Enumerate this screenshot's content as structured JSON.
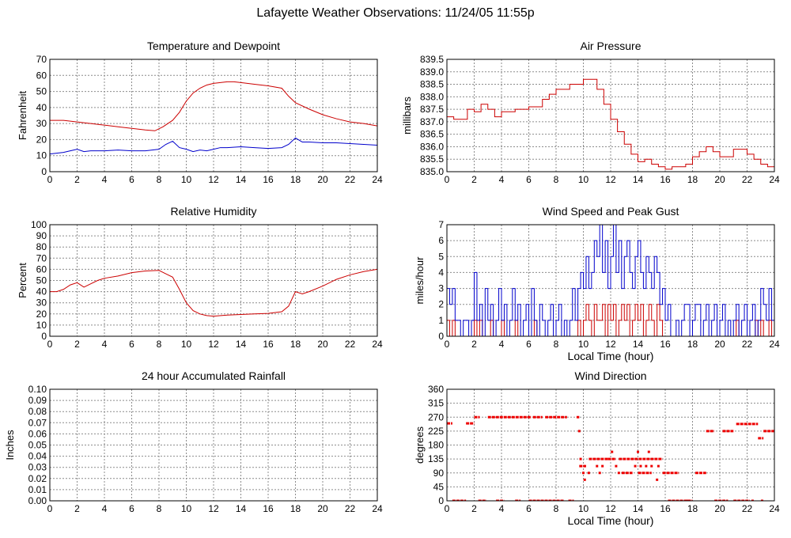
{
  "title": "Lafayette Weather Observations: 11/24/05 11:55p",
  "colors": {
    "temperature": "#cc0000",
    "dewpoint": "#0000cc",
    "pressure": "#cc0000",
    "humidity": "#cc0000",
    "wind_speed": "#cc0000",
    "peak_gust": "#0000cc",
    "rainfall": "#cc0000",
    "direction": "#ee0000"
  },
  "chart_data": [
    {
      "id": "temperature-dewpoint",
      "type": "line",
      "title": "Temperature and Dewpoint",
      "xlabel": "",
      "ylabel": "Fahrenheit",
      "xlim": [
        0,
        24
      ],
      "ylim": [
        0,
        70
      ],
      "xticks": [
        0,
        2,
        4,
        6,
        8,
        10,
        12,
        14,
        16,
        18,
        20,
        22,
        24
      ],
      "yticks": [
        0,
        10,
        20,
        30,
        40,
        50,
        60,
        70
      ],
      "grid": true,
      "series": [
        {
          "x": [
            0,
            1,
            2,
            3,
            4,
            5,
            6,
            7,
            7.7,
            8.3,
            9,
            9.5,
            10,
            10.5,
            11,
            11.5,
            12,
            12.5,
            13,
            13.5,
            14,
            15,
            16,
            17,
            17.5,
            18,
            19,
            20,
            21,
            22,
            23,
            24
          ],
          "y": [
            32,
            32,
            31,
            30,
            29,
            28,
            27,
            26,
            25.5,
            28,
            32,
            37,
            44,
            49,
            52,
            54,
            55,
            55.5,
            56,
            56,
            55.5,
            54.5,
            53.5,
            52,
            47,
            43,
            39,
            35.5,
            33,
            31,
            30,
            28.5
          ]
        },
        {
          "x": [
            0,
            0.5,
            1,
            1.5,
            2,
            2.5,
            3,
            4,
            5,
            6,
            7,
            8,
            8.5,
            9,
            9.5,
            10,
            10.5,
            11,
            11.5,
            12,
            12.5,
            13,
            14,
            15,
            16,
            17,
            17.5,
            18,
            18.5,
            19,
            20,
            21,
            22,
            23,
            24
          ],
          "y": [
            11,
            11.5,
            12,
            13,
            14,
            12.5,
            13,
            13,
            13.5,
            13,
            13,
            14,
            17,
            19,
            15,
            14,
            12.5,
            13.5,
            13,
            14,
            15,
            15,
            15.5,
            15,
            14.5,
            15,
            17,
            21,
            18.5,
            18.5,
            18,
            18,
            17.5,
            17,
            16.5
          ]
        }
      ]
    },
    {
      "id": "air-pressure",
      "type": "line",
      "title": "Air Pressure",
      "xlabel": "",
      "ylabel": "millibars",
      "xlim": [
        0,
        24
      ],
      "ylim": [
        835.0,
        839.5
      ],
      "xticks": [
        0,
        2,
        4,
        6,
        8,
        10,
        12,
        14,
        16,
        18,
        20,
        22,
        24
      ],
      "yticks": [
        835.0,
        835.5,
        836.0,
        836.5,
        837.0,
        837.5,
        838.0,
        838.5,
        839.0,
        839.5
      ],
      "ytick_labels": [
        "835.0",
        "835.5",
        "836.0",
        "836.5",
        "837.0",
        "837.5",
        "838.0",
        "838.5",
        "839.0",
        "839.5"
      ],
      "grid": true,
      "series": [
        {
          "step": true,
          "x": [
            0,
            0.5,
            1.5,
            2,
            2.5,
            3,
            3.5,
            4,
            5,
            6,
            7,
            7.5,
            8,
            9,
            10,
            11,
            11.5,
            12,
            12.5,
            13,
            13.5,
            14,
            14.5,
            15,
            15.5,
            16,
            16.5,
            17,
            17.5,
            18,
            18.5,
            19,
            19.5,
            20,
            21,
            22,
            22.5,
            23,
            23.5,
            24
          ],
          "y": [
            837.2,
            837.1,
            837.5,
            837.4,
            837.7,
            837.5,
            837.2,
            837.4,
            837.5,
            837.6,
            837.9,
            838.1,
            838.3,
            838.5,
            838.7,
            838.3,
            837.7,
            837.1,
            836.6,
            836.1,
            835.7,
            835.4,
            835.5,
            835.3,
            835.2,
            835.1,
            835.2,
            835.2,
            835.3,
            835.6,
            835.8,
            836.0,
            835.8,
            835.6,
            835.9,
            835.7,
            835.5,
            835.3,
            835.2,
            835.1
          ]
        }
      ]
    },
    {
      "id": "relative-humidity",
      "type": "line",
      "title": "Relative Humidity",
      "xlabel": "",
      "ylabel": "Percent",
      "xlim": [
        0,
        24
      ],
      "ylim": [
        0,
        100
      ],
      "xticks": [
        0,
        2,
        4,
        6,
        8,
        10,
        12,
        14,
        16,
        18,
        20,
        22,
        24
      ],
      "yticks": [
        0,
        10,
        20,
        30,
        40,
        50,
        60,
        70,
        80,
        90,
        100
      ],
      "grid": true,
      "series": [
        {
          "x": [
            0,
            0.5,
            1,
            1.5,
            2,
            2.5,
            3,
            3.5,
            4,
            5,
            6,
            7,
            8,
            8.5,
            9,
            9.5,
            10,
            10.5,
            11,
            11.5,
            12,
            13,
            14,
            15,
            16,
            17,
            17.5,
            18,
            18.5,
            19,
            20,
            21,
            22,
            23,
            24
          ],
          "y": [
            40,
            40,
            42,
            46,
            48,
            44,
            47,
            50,
            52,
            54,
            57,
            58.5,
            59,
            56,
            53,
            42,
            30,
            23,
            20,
            18.5,
            18,
            19,
            19.5,
            20,
            20.5,
            22,
            27,
            40,
            38,
            40,
            45,
            51,
            55,
            58,
            60
          ]
        }
      ]
    },
    {
      "id": "wind-speed",
      "type": "line",
      "title": "Wind Speed and Peak Gust",
      "xlabel": "Local Time (hour)",
      "ylabel": "miles/hour",
      "xlim": [
        0,
        24
      ],
      "ylim": [
        0,
        7
      ],
      "xticks": [
        0,
        2,
        4,
        6,
        8,
        10,
        12,
        14,
        16,
        18,
        20,
        22,
        24
      ],
      "yticks": [
        0,
        1,
        2,
        3,
        4,
        5,
        6,
        7
      ],
      "grid": true,
      "series": [
        {
          "role": "wind_speed",
          "step": true,
          "x": [
            0,
            0.2,
            0.4,
            0.6,
            2.0,
            2.2,
            2.4,
            2.6,
            3.2,
            3.4,
            4.0,
            4.2,
            5.0,
            5.2,
            6.4,
            6.6,
            9.6,
            9.8,
            10.0,
            10.2,
            10.4,
            10.6,
            10.8,
            11.0,
            11.2,
            11.4,
            11.6,
            11.8,
            12.0,
            12.2,
            12.4,
            12.6,
            12.8,
            13.0,
            13.2,
            13.4,
            13.6,
            13.8,
            14.0,
            14.2,
            14.4,
            14.6,
            14.8,
            15.0,
            15.2,
            15.4,
            15.6,
            15.8,
            16.0,
            21.2,
            21.4,
            22.6,
            22.8,
            23.0,
            23.2,
            23.6,
            23.8,
            24.0
          ],
          "y": [
            1,
            0,
            1,
            0,
            1,
            0,
            1,
            0,
            1,
            0,
            1,
            0,
            1,
            0,
            1,
            0,
            1,
            0,
            1,
            2,
            1,
            0,
            2,
            1,
            1,
            2,
            0,
            2,
            1,
            2,
            0,
            1,
            2,
            1,
            2,
            0,
            1,
            2,
            1,
            2,
            0,
            1,
            2,
            1,
            0,
            2,
            1,
            0,
            0,
            1,
            0,
            1,
            0,
            1,
            0,
            1,
            0,
            0
          ]
        },
        {
          "role": "peak_gust",
          "step": true,
          "x": [
            0,
            0.2,
            0.4,
            0.6,
            1.0,
            1.2,
            1.6,
            1.8,
            2.0,
            2.2,
            2.4,
            2.6,
            2.8,
            3.0,
            3.2,
            3.4,
            3.6,
            3.8,
            4.0,
            4.2,
            4.4,
            4.6,
            4.8,
            5.0,
            5.2,
            5.4,
            5.6,
            5.8,
            6.0,
            6.2,
            6.4,
            6.6,
            6.8,
            7.0,
            7.2,
            7.4,
            7.6,
            7.8,
            8.0,
            8.2,
            8.4,
            8.6,
            8.8,
            9.0,
            9.2,
            9.4,
            9.6,
            9.8,
            10.0,
            10.2,
            10.4,
            10.6,
            10.8,
            11.0,
            11.2,
            11.4,
            11.6,
            11.8,
            12.0,
            12.2,
            12.4,
            12.6,
            12.8,
            13.0,
            13.2,
            13.4,
            13.6,
            13.8,
            14.0,
            14.2,
            14.4,
            14.6,
            14.8,
            15.0,
            15.2,
            15.4,
            15.6,
            15.8,
            16.0,
            16.2,
            16.4,
            16.8,
            17.0,
            17.2,
            17.4,
            17.8,
            18.0,
            18.2,
            18.6,
            18.8,
            19.0,
            19.2,
            19.4,
            19.6,
            19.8,
            20.0,
            20.2,
            20.4,
            20.6,
            20.8,
            21.0,
            21.2,
            21.4,
            21.6,
            21.8,
            22.0,
            22.2,
            22.4,
            22.6,
            22.8,
            23.0,
            23.2,
            23.4,
            23.6,
            23.8,
            24.0
          ],
          "y": [
            3,
            2,
            3,
            1,
            0,
            1,
            0,
            1,
            4,
            1,
            2,
            0,
            3,
            1,
            2,
            0,
            1,
            3,
            1,
            2,
            0,
            1,
            3,
            1,
            2,
            0,
            1,
            2,
            0,
            3,
            1,
            0,
            2,
            1,
            0,
            1,
            2,
            0,
            1,
            2,
            0,
            1,
            0,
            1,
            3,
            1,
            3,
            4,
            3,
            5,
            3,
            4,
            6,
            5,
            7,
            4,
            6,
            3,
            5,
            7,
            4,
            6,
            3,
            5,
            6,
            4,
            3,
            5,
            6,
            4,
            3,
            5,
            4,
            3,
            5,
            4,
            2,
            3,
            1,
            2,
            0,
            1,
            0,
            1,
            2,
            0,
            1,
            2,
            0,
            1,
            2,
            0,
            1,
            2,
            0,
            1,
            2,
            0,
            1,
            0,
            1,
            2,
            0,
            1,
            2,
            0,
            1,
            2,
            0,
            1,
            3,
            2,
            1,
            3,
            1,
            0
          ]
        }
      ]
    },
    {
      "id": "rainfall",
      "type": "line",
      "title": "24 hour Accumulated Rainfall",
      "xlabel": "",
      "ylabel": "Inches",
      "xlim": [
        0,
        24
      ],
      "ylim": [
        0,
        0.1
      ],
      "xticks": [
        0,
        2,
        4,
        6,
        8,
        10,
        12,
        14,
        16,
        18,
        20,
        22,
        24
      ],
      "yticks": [
        0,
        0.01,
        0.02,
        0.03,
        0.04,
        0.05,
        0.06,
        0.07,
        0.08,
        0.09,
        0.1
      ],
      "ytick_labels": [
        "0.00",
        "0.01",
        "0.02",
        "0.03",
        "0.04",
        "0.05",
        "0.06",
        "0.07",
        "0.08",
        "0.09",
        "0.10"
      ],
      "grid": true,
      "series": [
        {
          "x": [
            0,
            24
          ],
          "y": [
            0,
            0
          ]
        }
      ]
    },
    {
      "id": "wind-direction",
      "type": "scatter",
      "title": "Wind Direction",
      "xlabel": "Local Time (hour)",
      "ylabel": "degrees",
      "xlim": [
        0,
        24
      ],
      "ylim": [
        0,
        360
      ],
      "xticks": [
        0,
        2,
        4,
        6,
        8,
        10,
        12,
        14,
        16,
        18,
        20,
        22,
        24
      ],
      "yticks": [
        0,
        45,
        90,
        135,
        180,
        225,
        270,
        315,
        360
      ],
      "grid": true,
      "segments": [
        {
          "x0": 0.0,
          "x1": 0.4,
          "y": 250
        },
        {
          "x0": 0.4,
          "x1": 1.4,
          "y": 0
        },
        {
          "x0": 1.4,
          "x1": 2.0,
          "y": 250
        },
        {
          "x0": 2.0,
          "x1": 2.4,
          "y": 270
        },
        {
          "x0": 2.3,
          "x1": 2.9,
          "y": 0
        },
        {
          "x0": 3.0,
          "x1": 6.2,
          "y": 270
        },
        {
          "x0": 3.6,
          "x1": 4.2,
          "y": 0
        },
        {
          "x0": 5.0,
          "x1": 5.4,
          "y": 0
        },
        {
          "x0": 6.3,
          "x1": 7.0,
          "y": 270
        },
        {
          "x0": 6.0,
          "x1": 8.6,
          "y": 0
        },
        {
          "x0": 7.2,
          "x1": 8.8,
          "y": 270
        },
        {
          "x0": 8.9,
          "x1": 9.3,
          "y": 0
        },
        {
          "x0": 9.5,
          "x1": 9.7,
          "y": 270
        },
        {
          "x0": 9.7,
          "x1": 10.2,
          "y": 112
        },
        {
          "x0": 10.4,
          "x1": 11.8,
          "y": 135
        },
        {
          "x0": 11.8,
          "x1": 12.4,
          "y": 135
        },
        {
          "x0": 12.6,
          "x1": 15.8,
          "y": 135
        },
        {
          "x0": 12.8,
          "x1": 13.6,
          "y": 90
        },
        {
          "x0": 14.0,
          "x1": 15.0,
          "y": 90
        },
        {
          "x0": 15.8,
          "x1": 17.0,
          "y": 90
        },
        {
          "x0": 16.2,
          "x1": 18.0,
          "y": 0
        },
        {
          "x0": 18.2,
          "x1": 19.0,
          "y": 90
        },
        {
          "x0": 19.0,
          "x1": 19.6,
          "y": 225
        },
        {
          "x0": 19.6,
          "x1": 20.6,
          "y": 0
        },
        {
          "x0": 20.2,
          "x1": 21.0,
          "y": 225
        },
        {
          "x0": 21.0,
          "x1": 22.2,
          "y": 0
        },
        {
          "x0": 21.2,
          "x1": 22.8,
          "y": 248
        },
        {
          "x0": 22.8,
          "x1": 23.2,
          "y": 202
        },
        {
          "x0": 23.2,
          "x1": 24.0,
          "y": 225
        }
      ],
      "points": [
        {
          "x": 9.7,
          "y": 225
        },
        {
          "x": 9.8,
          "y": 135
        },
        {
          "x": 10.0,
          "y": 90
        },
        {
          "x": 10.1,
          "y": 68
        },
        {
          "x": 10.4,
          "y": 90
        },
        {
          "x": 11.0,
          "y": 112
        },
        {
          "x": 11.2,
          "y": 90
        },
        {
          "x": 11.4,
          "y": 112
        },
        {
          "x": 12.1,
          "y": 158
        },
        {
          "x": 12.4,
          "y": 112
        },
        {
          "x": 12.6,
          "y": 90
        },
        {
          "x": 13.8,
          "y": 112
        },
        {
          "x": 14.0,
          "y": 158
        },
        {
          "x": 14.2,
          "y": 112
        },
        {
          "x": 14.6,
          "y": 112
        },
        {
          "x": 14.8,
          "y": 158
        },
        {
          "x": 15.0,
          "y": 112
        },
        {
          "x": 15.4,
          "y": 68
        },
        {
          "x": 15.5,
          "y": 112
        },
        {
          "x": 17.6,
          "y": 0
        },
        {
          "x": 22.4,
          "y": 0
        },
        {
          "x": 23.1,
          "y": 0
        }
      ]
    }
  ]
}
